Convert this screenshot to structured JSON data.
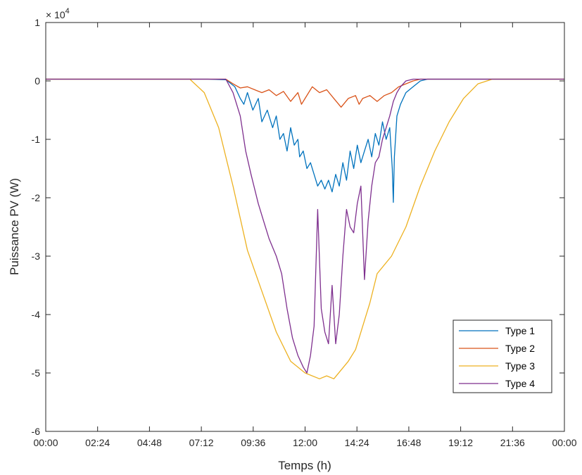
{
  "chart_data": {
    "type": "line",
    "title": "",
    "xlabel": "Temps (h)",
    "ylabel": "Puissance PV (W)",
    "y_exponent_label": "× 10",
    "y_exponent_power": "4",
    "y_multiplier": 10000,
    "xlim": [
      0,
      1440
    ],
    "ylim": [
      -6,
      1
    ],
    "x_unit": "minutes since 00:00",
    "x_ticks": [
      0,
      144,
      288,
      432,
      576,
      720,
      864,
      1008,
      1152,
      1296,
      1440
    ],
    "x_tick_labels": [
      "00:00",
      "02:24",
      "04:48",
      "07:12",
      "09:36",
      "12:00",
      "14:24",
      "16:48",
      "19:12",
      "21:36",
      "00:00"
    ],
    "y_ticks": [
      1,
      0,
      -1,
      -2,
      -3,
      -4,
      -5,
      -6
    ],
    "y_tick_labels": [
      "1",
      "0",
      "-1",
      "-2",
      "-3",
      "-4",
      "-5",
      "-6"
    ],
    "grid": false,
    "legend_position": "bottom-right",
    "series": [
      {
        "name": "Type 1",
        "color": "#0072BD",
        "x": [
          0,
          450,
          500,
          525,
          540,
          550,
          560,
          575,
          590,
          600,
          615,
          630,
          640,
          650,
          660,
          670,
          680,
          690,
          700,
          705,
          715,
          725,
          735,
          745,
          755,
          765,
          775,
          785,
          795,
          805,
          815,
          825,
          835,
          845,
          855,
          865,
          875,
          885,
          895,
          905,
          915,
          925,
          935,
          945,
          955,
          962,
          965,
          968,
          975,
          985,
          1000,
          1020,
          1040,
          1060,
          1440
        ],
        "values": [
          0.03,
          0.03,
          0.02,
          -0.1,
          -0.3,
          -0.4,
          -0.2,
          -0.5,
          -0.3,
          -0.7,
          -0.5,
          -0.8,
          -0.6,
          -1.0,
          -0.9,
          -1.2,
          -0.8,
          -1.1,
          -1.0,
          -1.3,
          -1.2,
          -1.5,
          -1.4,
          -1.6,
          -1.8,
          -1.7,
          -1.85,
          -1.7,
          -1.9,
          -1.6,
          -1.8,
          -1.4,
          -1.7,
          -1.2,
          -1.5,
          -1.1,
          -1.4,
          -1.2,
          -1.0,
          -1.3,
          -0.9,
          -1.1,
          -0.7,
          -1.0,
          -0.8,
          -1.5,
          -2.08,
          -1.3,
          -0.6,
          -0.4,
          -0.2,
          -0.1,
          0.0,
          0.03,
          0.03
        ]
      },
      {
        "name": "Type 2",
        "color": "#D95319",
        "x": [
          0,
          500,
          520,
          540,
          560,
          580,
          600,
          620,
          640,
          660,
          680,
          700,
          710,
          720,
          740,
          760,
          780,
          800,
          820,
          840,
          860,
          870,
          880,
          900,
          920,
          940,
          960,
          980,
          1000,
          1020,
          1040,
          1440
        ],
        "values": [
          0.03,
          0.03,
          -0.05,
          -0.12,
          -0.1,
          -0.15,
          -0.2,
          -0.15,
          -0.25,
          -0.18,
          -0.35,
          -0.2,
          -0.4,
          -0.3,
          -0.1,
          -0.2,
          -0.15,
          -0.3,
          -0.45,
          -0.3,
          -0.25,
          -0.4,
          -0.3,
          -0.25,
          -0.35,
          -0.25,
          -0.2,
          -0.1,
          -0.05,
          0.0,
          0.03,
          0.03
        ]
      },
      {
        "name": "Type 3",
        "color": "#EDB120",
        "x": [
          0,
          400,
          440,
          480,
          520,
          560,
          600,
          640,
          680,
          720,
          760,
          780,
          800,
          820,
          840,
          860,
          880,
          900,
          920,
          960,
          1000,
          1040,
          1080,
          1120,
          1160,
          1200,
          1240,
          1280,
          1320,
          1440
        ],
        "values": [
          0.03,
          0.03,
          -0.2,
          -0.8,
          -1.8,
          -2.9,
          -3.6,
          -4.3,
          -4.8,
          -5.0,
          -5.1,
          -5.05,
          -5.1,
          -4.95,
          -4.8,
          -4.6,
          -4.2,
          -3.8,
          -3.3,
          -3.0,
          -2.5,
          -1.8,
          -1.2,
          -0.7,
          -0.3,
          -0.05,
          0.03,
          0.03,
          0.03,
          0.03
        ]
      },
      {
        "name": "Type 4",
        "color": "#7E2F8E",
        "x": [
          0,
          500,
          520,
          540,
          555,
          570,
          590,
          605,
          620,
          640,
          655,
          670,
          685,
          700,
          715,
          725,
          735,
          745,
          755,
          765,
          775,
          785,
          795,
          805,
          815,
          825,
          835,
          845,
          855,
          865,
          875,
          885,
          895,
          905,
          915,
          925,
          935,
          945,
          955,
          965,
          975,
          985,
          1000,
          1020,
          1440
        ],
        "values": [
          0.03,
          0.03,
          -0.2,
          -0.6,
          -1.2,
          -1.6,
          -2.1,
          -2.4,
          -2.7,
          -3.0,
          -3.3,
          -3.9,
          -4.4,
          -4.7,
          -4.9,
          -5.0,
          -4.7,
          -4.2,
          -2.2,
          -3.9,
          -4.3,
          -4.5,
          -3.5,
          -4.5,
          -4.0,
          -3.0,
          -2.2,
          -2.5,
          -2.6,
          -2.1,
          -1.8,
          -3.4,
          -2.4,
          -1.8,
          -1.4,
          -1.3,
          -1.0,
          -0.8,
          -0.6,
          -0.35,
          -0.2,
          -0.1,
          0.0,
          0.03,
          0.03
        ]
      }
    ]
  }
}
